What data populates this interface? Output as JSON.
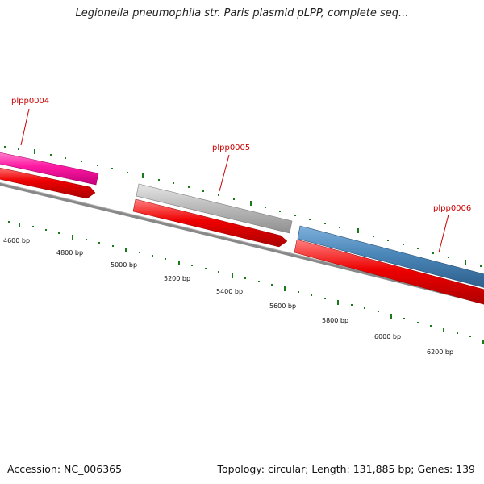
{
  "title": "Legionella pneumophila str. Paris plasmid pLPP, complete seq...",
  "footer": {
    "accession": "Accession: NC_006365",
    "topology": "Topology: circular; Length: 131,885 bp; Genes: 139"
  },
  "genes": [
    {
      "name": "plpp0004",
      "color": "#ff1aa3",
      "strand": "forward"
    },
    {
      "name": "plpp0005",
      "color": "#bbbbbb",
      "strand": "forward"
    },
    {
      "name": "plpp0006",
      "color": "#4a86b8",
      "strand": "forward"
    }
  ],
  "scale_labels": [
    "4600 bp",
    "4800 bp",
    "5000 bp",
    "5200 bp",
    "5400 bp",
    "5600 bp",
    "5800 bp",
    "6000 bp",
    "6200 bp"
  ],
  "colors": {
    "cds": "#ee0000",
    "backbone": "#777777",
    "tick": "#1a7a1a",
    "gene_label": "#cc0000"
  }
}
